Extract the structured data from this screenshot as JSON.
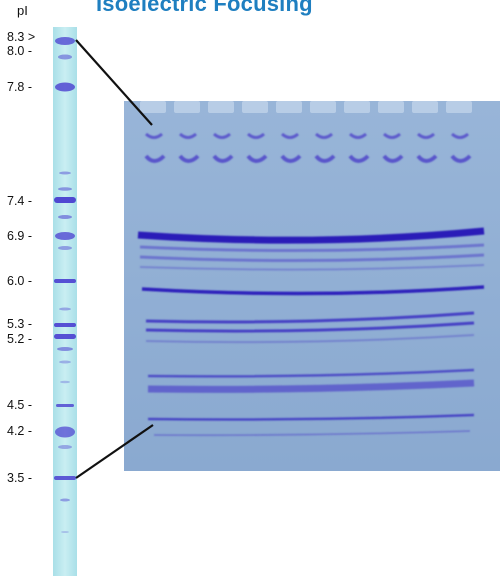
{
  "header": {
    "title_fragment": "Isoelectric Focusing"
  },
  "axis": {
    "label": "pI"
  },
  "markers": [
    {
      "label": "8.3 >",
      "value": 8.3
    },
    {
      "label": "8.0 -",
      "value": 8.0
    },
    {
      "label": "7.8 -",
      "value": 7.8
    },
    {
      "label": "7.4 -",
      "value": 7.4
    },
    {
      "label": "6.9 -",
      "value": 6.9
    },
    {
      "label": "6.0 -",
      "value": 6.0
    },
    {
      "label": "5.3 -",
      "value": 5.3
    },
    {
      "label": "5.2 -",
      "value": 5.2
    },
    {
      "label": "4.5 -",
      "value": 4.5
    },
    {
      "label": "4.2 -",
      "value": 4.2
    },
    {
      "label": "3.5 -",
      "value": 3.5
    }
  ],
  "gel": {
    "lane_count": 10,
    "colors": {
      "background": "#8fb0d6",
      "band": "#3a2ec4",
      "strip": "#bfe8ee"
    }
  }
}
